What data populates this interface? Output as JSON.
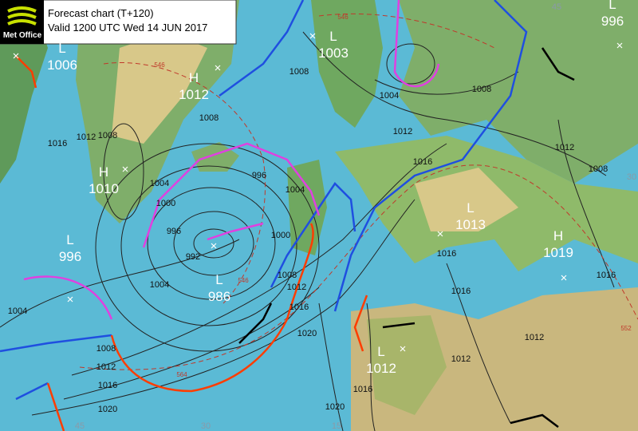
{
  "header": {
    "logo": "Met Office",
    "title": "Forecast chart (T+120)",
    "valid": "Valid 1200 UTC Wed 14 JUN 2017"
  },
  "centers": [
    {
      "type": "L",
      "pressure": 1006
    },
    {
      "type": "H",
      "pressure": 1012
    },
    {
      "type": "H",
      "pressure": 1010
    },
    {
      "type": "L",
      "pressure": 996
    },
    {
      "type": "L",
      "pressure": 986
    },
    {
      "type": "L",
      "pressure": 1003
    },
    {
      "type": "L",
      "pressure": 996
    },
    {
      "type": "L",
      "pressure": 1013
    },
    {
      "type": "H",
      "pressure": 1019
    },
    {
      "type": "L",
      "pressure": 1012
    }
  ],
  "isobar_labels": [
    1016,
    1012,
    1008,
    1004,
    1000,
    996,
    992,
    1004,
    1004,
    1008,
    1012,
    1016,
    1020,
    996,
    1004,
    1000,
    1008,
    1012,
    1016,
    1020,
    1020,
    1016,
    1008,
    1008,
    1004,
    1008,
    1012,
    1016,
    1016,
    1016,
    1012,
    1012,
    1016,
    1012,
    1008
  ],
  "thickness_labels": [
    546,
    546,
    546,
    564,
    552
  ],
  "grid_labels": [
    45,
    30,
    15,
    45,
    30
  ]
}
